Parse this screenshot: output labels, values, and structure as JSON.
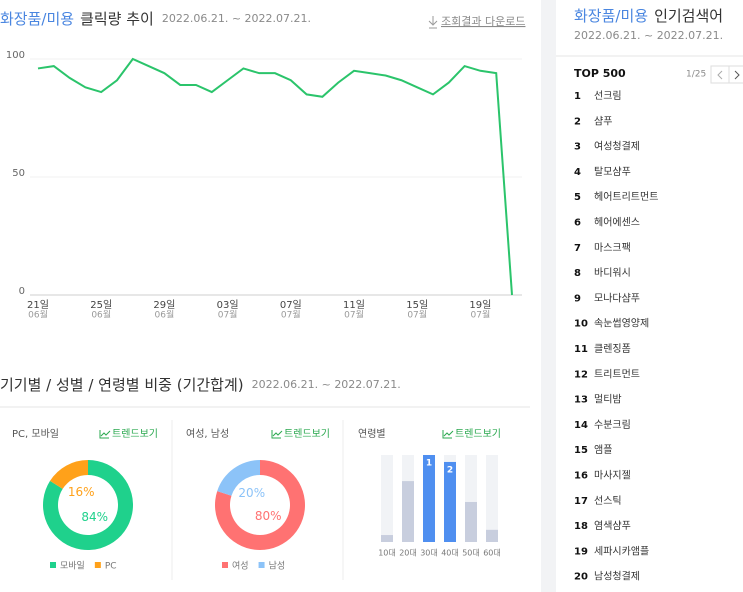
{
  "header": {
    "category": "화장품/미용",
    "title": "클릭량 추이",
    "period": "2022.06.21. ~ 2022.07.21.",
    "download": "조회결과 다운로드"
  },
  "section2": {
    "title": "기기별 / 성별 / 연령별 비중 (기간합계)",
    "period": "2022.06.21. ~ 2022.07.21."
  },
  "chart_data": [
    {
      "type": "line",
      "categories": [
        "21일",
        null,
        null,
        null,
        "25일",
        null,
        null,
        null,
        "29일",
        null,
        null,
        null,
        "03일",
        null,
        null,
        null,
        "07일",
        null,
        null,
        null,
        "11일",
        null,
        null,
        null,
        "15일",
        null,
        null,
        null,
        "19일",
        null,
        null
      ],
      "category_months": [
        "06월",
        null,
        null,
        null,
        "06월",
        null,
        null,
        null,
        "06월",
        null,
        null,
        null,
        "07월",
        null,
        null,
        null,
        "07월",
        null,
        null,
        null,
        "07월",
        null,
        null,
        null,
        "07월",
        null,
        null,
        null,
        "07월",
        null,
        null
      ],
      "values": [
        96,
        97,
        92,
        88,
        86,
        91,
        100,
        97,
        94,
        89,
        89,
        86,
        91,
        96,
        94,
        94,
        91,
        85,
        84,
        90,
        95,
        94,
        93,
        91,
        88,
        85,
        90,
        97,
        95,
        94,
        0
      ],
      "color": "#2bc46b",
      "ylim": [
        0,
        100
      ],
      "yticks": [
        0,
        50,
        100
      ],
      "grid": true
    },
    {
      "type": "pie",
      "title": "PC, 모바일",
      "link": "트렌드보기",
      "categories": [
        "모바일",
        "PC"
      ],
      "values": [
        84,
        16
      ],
      "value_labels": [
        "84%",
        "16%"
      ],
      "colors": [
        "#1fd18c",
        "#ffa11a"
      ]
    },
    {
      "type": "pie",
      "title": "여성, 남성",
      "link": "트렌드보기",
      "categories": [
        "여성",
        "남성"
      ],
      "values": [
        80,
        20
      ],
      "value_labels": [
        "80%",
        "20%"
      ],
      "colors": [
        "#ff7272",
        "#8cc3f8"
      ]
    },
    {
      "type": "bar",
      "title": "연령별",
      "link": "트렌드보기",
      "categories": [
        "10대",
        "20대",
        "30대",
        "40대",
        "50대",
        "60대"
      ],
      "values": [
        8,
        70,
        100,
        92,
        46,
        14
      ],
      "rank_labels": [
        null,
        null,
        "1",
        "2",
        null,
        null
      ],
      "colors": [
        "#c8cede",
        "#c8cede",
        "#4f8ff0",
        "#4f8ff0",
        "#c8cede",
        "#c8cede"
      ],
      "ylim": [
        0,
        100
      ]
    }
  ],
  "ranking": {
    "category": "화장품/미용",
    "title": "인기검색어",
    "period": "2022.06.21. ~ 2022.07.21.",
    "label": "TOP 500",
    "page": "1/25",
    "items": [
      {
        "rank": 1,
        "keyword": "선크림"
      },
      {
        "rank": 2,
        "keyword": "샴푸"
      },
      {
        "rank": 3,
        "keyword": "여성청결제"
      },
      {
        "rank": 4,
        "keyword": "탈모샴푸"
      },
      {
        "rank": 5,
        "keyword": "헤어트리트먼트"
      },
      {
        "rank": 6,
        "keyword": "헤어에센스"
      },
      {
        "rank": 7,
        "keyword": "마스크팩"
      },
      {
        "rank": 8,
        "keyword": "바디워시"
      },
      {
        "rank": 9,
        "keyword": "모나다샴푸"
      },
      {
        "rank": 10,
        "keyword": "속눈썹영양제"
      },
      {
        "rank": 11,
        "keyword": "클렌징폼"
      },
      {
        "rank": 12,
        "keyword": "트리트먼트"
      },
      {
        "rank": 13,
        "keyword": "멀티밤"
      },
      {
        "rank": 14,
        "keyword": "수분크림"
      },
      {
        "rank": 15,
        "keyword": "앰플"
      },
      {
        "rank": 16,
        "keyword": "마사지젤"
      },
      {
        "rank": 17,
        "keyword": "선스틱"
      },
      {
        "rank": 18,
        "keyword": "염색샴푸"
      },
      {
        "rank": 19,
        "keyword": "세파시카앰플"
      },
      {
        "rank": 20,
        "keyword": "남성청결제"
      }
    ]
  }
}
